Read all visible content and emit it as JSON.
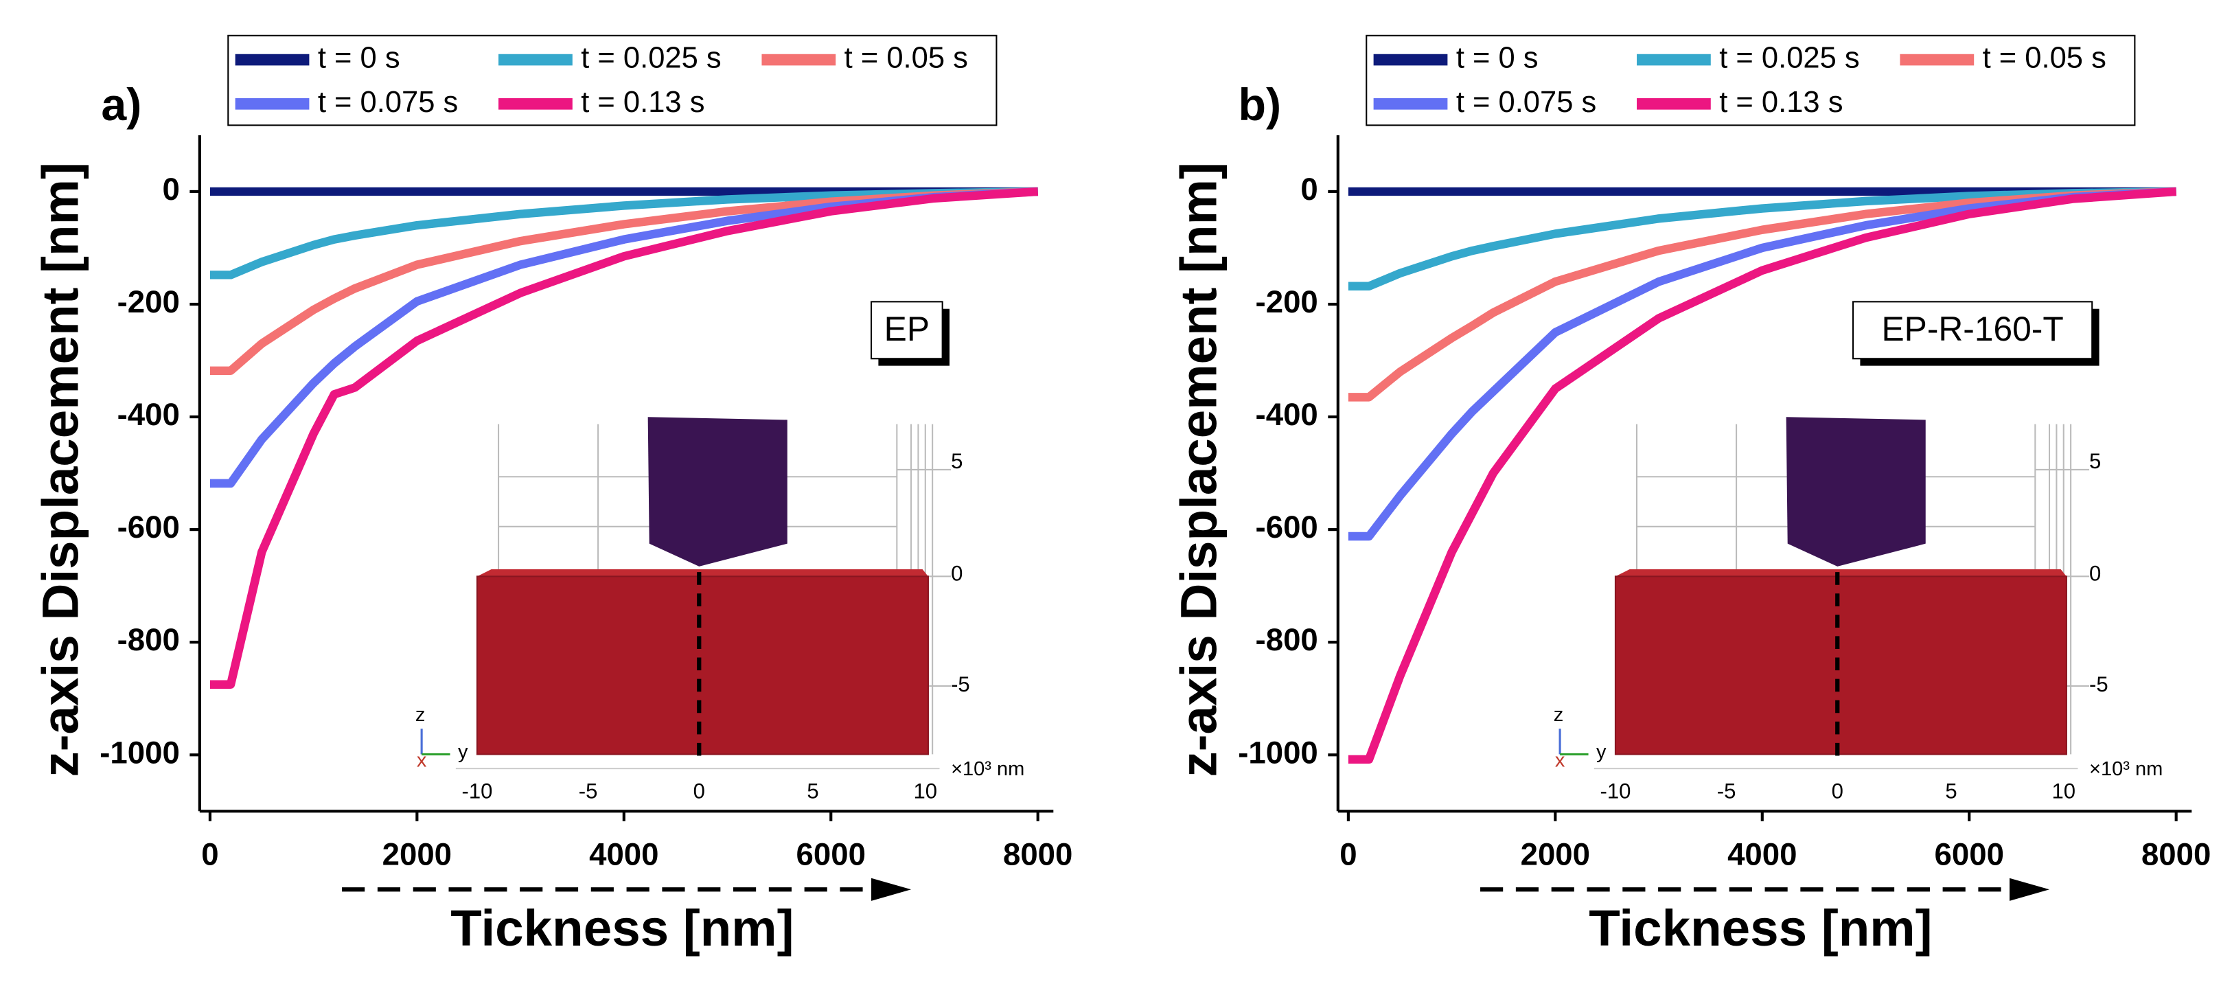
{
  "chart_data": [
    {
      "type": "line",
      "panel_label": "a)",
      "annotation": "EP",
      "x_label": "Tickness [nm]",
      "y_label": "z-axis Displacement [nm]",
      "x": [
        0,
        200,
        500,
        1000,
        1200,
        1400,
        2000,
        3000,
        4000,
        5000,
        6000,
        7000,
        8000
      ],
      "xlim": [
        -100,
        8150
      ],
      "xticks": [
        0,
        2000,
        4000,
        6000,
        8000
      ],
      "ylim": [
        -1100,
        100
      ],
      "yticks": [
        -1000,
        -800,
        -600,
        -400,
        -200,
        0
      ],
      "series": [
        {
          "name": "t = 0 s",
          "color": "#0d1a7a",
          "values": [
            0,
            0,
            0,
            0,
            0,
            0,
            0,
            0,
            0,
            0,
            0,
            0,
            0
          ]
        },
        {
          "name": "t = 0.025 s",
          "color": "#35a8cc",
          "values": [
            -148,
            -148,
            -125,
            -95,
            -85,
            -78,
            -60,
            -40,
            -25,
            -14,
            -7,
            -3,
            0
          ]
        },
        {
          "name": "t = 0.05 s",
          "color": "#f47272",
          "values": [
            -318,
            -318,
            -270,
            -210,
            -190,
            -172,
            -130,
            -88,
            -58,
            -35,
            -18,
            -7,
            0
          ]
        },
        {
          "name": "t = 0.075 s",
          "color": "#6270f4",
          "values": [
            -518,
            -518,
            -440,
            -340,
            -305,
            -275,
            -195,
            -130,
            -85,
            -52,
            -27,
            -10,
            0
          ]
        },
        {
          "name": "t = 0.13 s",
          "color": "#ec1681",
          "values": [
            -875,
            -875,
            -640,
            -430,
            -360,
            -348,
            -265,
            -180,
            -115,
            -70,
            -35,
            -12,
            0
          ]
        }
      ],
      "inset": {
        "z_labels": [
          "5",
          "0",
          "-5"
        ],
        "x_labels": [
          "-10",
          "-5",
          "0",
          "5",
          "10"
        ],
        "unit": "×10³ nm",
        "axes": [
          "z",
          "y",
          "x"
        ]
      }
    },
    {
      "type": "line",
      "panel_label": "b)",
      "annotation": "EP-R-160-T",
      "x_label": "Tickness [nm]",
      "y_label": "z-axis Displacement [nm]",
      "x": [
        0,
        200,
        500,
        1000,
        1200,
        1400,
        2000,
        3000,
        4000,
        5000,
        6000,
        7000,
        8000
      ],
      "xlim": [
        -100,
        8150
      ],
      "xticks": [
        0,
        2000,
        4000,
        6000,
        8000
      ],
      "ylim": [
        -1100,
        100
      ],
      "yticks": [
        -1000,
        -800,
        -600,
        -400,
        -200,
        0
      ],
      "series": [
        {
          "name": "t = 0 s",
          "color": "#0d1a7a",
          "values": [
            0,
            0,
            0,
            0,
            0,
            0,
            0,
            0,
            0,
            0,
            0,
            0,
            0
          ]
        },
        {
          "name": "t = 0.025 s",
          "color": "#35a8cc",
          "values": [
            -168,
            -168,
            -145,
            -115,
            -105,
            -97,
            -75,
            -48,
            -30,
            -17,
            -8,
            -3,
            0
          ]
        },
        {
          "name": "t = 0.05 s",
          "color": "#f47272",
          "values": [
            -365,
            -365,
            -320,
            -260,
            -238,
            -215,
            -160,
            -105,
            -68,
            -40,
            -20,
            -7,
            0
          ]
        },
        {
          "name": "t = 0.075 s",
          "color": "#6270f4",
          "values": [
            -612,
            -612,
            -540,
            -430,
            -390,
            -355,
            -250,
            -160,
            -100,
            -60,
            -30,
            -10,
            0
          ]
        },
        {
          "name": "t = 0.13 s",
          "color": "#ec1681",
          "values": [
            -1008,
            -1008,
            -860,
            -640,
            -570,
            -500,
            -350,
            -225,
            -140,
            -82,
            -40,
            -13,
            0
          ]
        }
      ],
      "inset": {
        "z_labels": [
          "5",
          "0",
          "-5"
        ],
        "x_labels": [
          "-10",
          "-5",
          "0",
          "5",
          "10"
        ],
        "unit": "×10³ nm",
        "axes": [
          "z",
          "y",
          "x"
        ]
      }
    }
  ]
}
